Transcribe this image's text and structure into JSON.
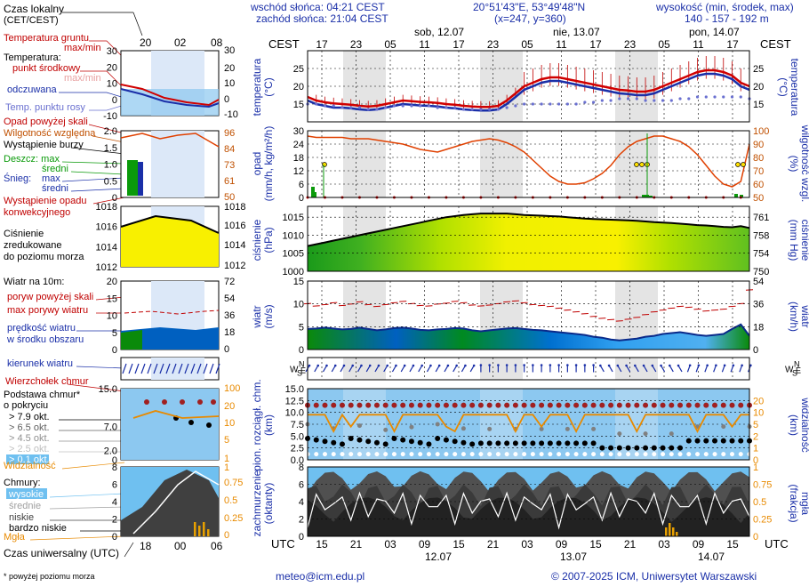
{
  "header": {
    "sunrise": "wschód słońca: 04:21 CEST",
    "sunset": "zachód słońca: 21:04 CEST",
    "coords": "20°51'43\"E, 53°49'48\"N",
    "grid": "(x=247, y=360)",
    "elev_title": "wysokość (min, środek, max)",
    "elev_values": "140 - 157 - 192 m",
    "days": [
      "sob, 12.07",
      "nie, 13.07",
      "pon, 14.07"
    ]
  },
  "left_labels": {
    "local_time": "Czas lokalny",
    "local_time2": "(CET/CEST)",
    "ground_temp": "Temperatura gruntu",
    "maxmin": "max/min",
    "temperature": "Temperatura:",
    "mid_point": "punkt środkowy",
    "maxmin2": "max/min",
    "apparent": "odczuwana",
    "dewpoint": "Temp. punktu rosy",
    "precip_over": "Opad powyżej skali",
    "humidity": "Wilgotność względna",
    "storm": "Wystąpienie burzy",
    "rain": "Deszcz: max",
    "rain_mean": "średni",
    "snow": "Śnieg:",
    "snow_max": "max",
    "snow_mean": "średni",
    "convective": "Wystąpienie opadu",
    "convective2": "konwekcyjnego",
    "pressure": "Ciśnienie",
    "pressure2": "zredukowane",
    "pressure3": "do poziomu morza",
    "wind": "Wiatr na 10m:",
    "gust_over": "poryw powyżej skali",
    "gust_max": "max porywy wiatru",
    "wind_speed": "prędkość wiatru",
    "wind_area": "w środku obszaru",
    "wind_dir": "kierunek wiatru",
    "cloud_top": "Wierzchołek chmur",
    "cloud_base": "Podstawa chmur*",
    "cloud_base2": "o pokryciu",
    "okt79": "> 7.9 okt.",
    "okt65": "> 6.5 okt.",
    "okt45": "> 4.5 okt.",
    "okt25": "> 2.5 okt.",
    "okt01": "> 0.1 okt.",
    "visibility": "Widzialność",
    "clouds": "Chmury:",
    "high": "wysokie",
    "mid": "średnie",
    "low": "niskie",
    "very_low": "bardzo niskie",
    "fog": "Mgła",
    "utc_label": "Czas uniwersalny (UTC)",
    "footnote": "* powyżej poziomu morza"
  },
  "axis_titles": {
    "temp_l": "temperatura",
    "temp_l2": "(°C)",
    "temp_r": "temperatura",
    "temp_r2": "(°C)",
    "prec_l": "opad",
    "prec_l2": "(mm/h, kg/m²/h)",
    "prec_r": "wilgotność wzgl.",
    "prec_r2": "(%)",
    "pres_l": "ciśnienie",
    "pres_l2": "(hPa)",
    "pres_r": "ciśnienie",
    "pres_r2": "(mm Hg)",
    "wind_l": "wiatr",
    "wind_l2": "(m/s)",
    "wind_r": "wiatr",
    "wind_r2": "(km/h)",
    "cloud_l": "pion. rozciągł. chm.",
    "cloud_l2": "(km)",
    "cloud_r": "widzialność",
    "cloud_r2": "(km)",
    "cov_l": "zachmurzenie",
    "cov_l2": "(oktanty)",
    "cov_r": "mgła",
    "cov_r2": "(frakcja)",
    "cest": "CEST",
    "utc": "UTC"
  },
  "footer": {
    "email": "meteo@icm.edu.pl",
    "copyright": "© 2007-2025 ICM, Uniwersytet Warszawski"
  },
  "chart_data": [
    {
      "type": "line",
      "title": "temperatura",
      "ylabel": "(°C)",
      "ylim": [
        10,
        30
      ],
      "cest_ticks": [
        "17",
        "23",
        "05",
        "11",
        "17",
        "23",
        "05",
        "11",
        "17",
        "23",
        "05",
        "11",
        "17"
      ],
      "utc_ticks": [
        "15",
        "21",
        "03",
        "09",
        "15",
        "21",
        "03",
        "09",
        "15",
        "21",
        "03",
        "09",
        "15"
      ],
      "utc_dates": [
        "12.07",
        "13.07",
        "14.07"
      ],
      "series": [
        {
          "name": "punkt środkowy",
          "values": [
            17,
            16,
            15.5,
            15.2,
            15,
            14.8,
            14.5,
            14.3,
            14.5,
            15,
            15.5,
            16,
            15.8,
            15.6,
            15.5,
            15.3,
            15,
            14.8,
            14.5,
            14.3,
            14.2,
            14.2,
            14.5,
            16,
            18,
            20,
            21,
            22,
            22.5,
            22.5,
            22,
            21.5,
            21,
            20.5,
            20,
            19.5,
            19,
            18.8,
            18.5,
            18.5,
            19,
            20,
            21,
            22,
            23,
            24,
            24.5,
            24.5,
            24,
            23,
            21,
            20
          ]
        },
        {
          "name": "odczuwana",
          "values": [
            16,
            15,
            14.5,
            14,
            14,
            13.8,
            13.5,
            13.3,
            13.5,
            14,
            14.5,
            15,
            14.8,
            14.6,
            14.5,
            14.3,
            14,
            13.8,
            13.5,
            13.3,
            13.2,
            13.2,
            13.5,
            15,
            17,
            19,
            20,
            21,
            21.5,
            21.5,
            21,
            20.5,
            20,
            19.5,
            19,
            18.5,
            18,
            17.8,
            17.5,
            17.5,
            18,
            19,
            20,
            21,
            22,
            23,
            23.5,
            23.5,
            23,
            22,
            20,
            19
          ]
        },
        {
          "name": "Temp. punktu rosy",
          "values": [
            15,
            15,
            14.5,
            14.5,
            14,
            14,
            14,
            13.5,
            13.5,
            14,
            14.5,
            14.5,
            14.5,
            14.5,
            14.5,
            14,
            14,
            14,
            13.5,
            13.5,
            13.5,
            13.5,
            13.5,
            14,
            14.5,
            15,
            15,
            15,
            15,
            15,
            15,
            15,
            15.5,
            15.5,
            16,
            16,
            16.5,
            16.5,
            16.5,
            16,
            16,
            16,
            16,
            16.5,
            16.5,
            17,
            17,
            17,
            17,
            17,
            17,
            16.5
          ]
        }
      ]
    },
    {
      "type": "line",
      "title": "opad",
      "ylabel": "(mm/h, kg/m²/h)",
      "ylim": [
        0,
        30
      ],
      "y2label": "wilgotność wzgl. (%)",
      "y2lim": [
        50,
        100
      ],
      "series": [
        {
          "name": "Wilgotność względna",
          "values": [
            96,
            95,
            95,
            95,
            95,
            94,
            94,
            94,
            93,
            92,
            91,
            90,
            88,
            86,
            85,
            84,
            86,
            88,
            90,
            92,
            93,
            94,
            93,
            91,
            88,
            84,
            78,
            72,
            66,
            62,
            60,
            60,
            61,
            64,
            68,
            74,
            82,
            88,
            92,
            94,
            96,
            96,
            94,
            92,
            88,
            82,
            74,
            66,
            60,
            58,
            62,
            90
          ]
        }
      ]
    },
    {
      "type": "area",
      "title": "ciśnienie",
      "ylabel": "(hPa)",
      "ylim": [
        1000,
        1018
      ],
      "y2label": "(mm Hg)",
      "y2ticks": [
        "761",
        "758",
        "754",
        "750"
      ],
      "series": [
        {
          "name": "Ciśnienie",
          "values": [
            1007,
            1007.5,
            1008,
            1008.5,
            1009,
            1009.5,
            1010,
            1010.5,
            1011,
            1011.5,
            1012,
            1012.5,
            1013,
            1013.5,
            1014,
            1014.5,
            1015,
            1015.3,
            1015.6,
            1015.8,
            1016,
            1016,
            1016,
            1016,
            1015.8,
            1015.6,
            1015.5,
            1015.4,
            1015.3,
            1015.2,
            1015,
            1014.8,
            1014.6,
            1014.5,
            1014.4,
            1014.3,
            1014.2,
            1014.1,
            1014,
            1013.8,
            1013.6,
            1013.5,
            1013.4,
            1013.2,
            1013,
            1012.8,
            1012.7,
            1012.5,
            1012.3,
            1012.2,
            1012.5,
            1012
          ]
        }
      ]
    },
    {
      "type": "area",
      "title": "wiatr",
      "ylabel": "(m/s)",
      "ylim": [
        0,
        15
      ],
      "y2label": "(km/h)",
      "y2ticks": [
        "54",
        "36",
        "18",
        "0"
      ],
      "series": [
        {
          "name": "prędkość wiatru",
          "values": [
            4.5,
            4.6,
            4.8,
            4.6,
            4.4,
            4.5,
            4.8,
            4.5,
            4.2,
            4.4,
            4.7,
            4.8,
            4.6,
            4.3,
            4.2,
            4.4,
            4.5,
            4.7,
            4.6,
            4.2,
            4,
            4.2,
            4.4,
            4.6,
            4.7,
            4.5,
            4.3,
            4.2,
            4,
            3.8,
            3.6,
            3.4,
            3.2,
            2.8,
            2.6,
            2.2,
            2,
            2.2,
            2.4,
            2.8,
            3,
            3.4,
            3.6,
            3.8,
            3.5,
            3.2,
            3,
            3.2,
            3.4,
            4.5,
            5.5,
            3
          ]
        },
        {
          "name": "max porywy wiatru",
          "values": [
            10,
            9.5,
            9.8,
            10.2,
            9.6,
            9.9,
            10.4,
            9.8,
            9.4,
            9.8,
            10.2,
            10.5,
            10,
            9.6,
            9.5,
            9.9,
            10.1,
            10.5,
            10.2,
            9.7,
            9.5,
            9.7,
            10,
            10.4,
            10.6,
            10.2,
            9.8,
            9.6,
            9.4,
            9,
            8.6,
            8.2,
            7.8,
            7.2,
            6.8,
            6.5,
            6.2,
            6.6,
            7,
            7.6,
            8.2,
            8.6,
            9,
            9.4,
            9.2,
            8.8,
            8.4,
            8.6,
            8.8,
            9.4,
            10,
            13
          ]
        }
      ]
    },
    {
      "type": "scatter",
      "title": "pion. rozciągł. chm.",
      "ylabel": "(km)",
      "ylim": [
        0,
        15
      ],
      "y2label": "widzialność (km)",
      "y2ticks": [
        "20",
        "10",
        "5",
        "2",
        "1",
        "0"
      ]
    },
    {
      "type": "area",
      "title": "zachmurzenie",
      "ylabel": "(oktanty)",
      "ylim": [
        0,
        8
      ],
      "y2label": "mgła (frakcja)",
      "y2ticks": [
        "1",
        "0.75",
        "0.5",
        "0.25",
        "0"
      ]
    }
  ]
}
